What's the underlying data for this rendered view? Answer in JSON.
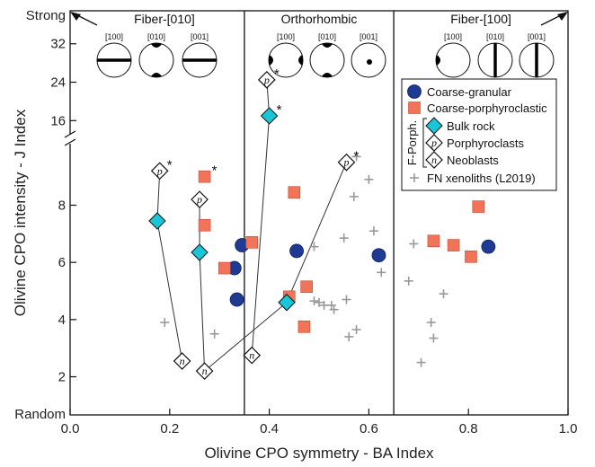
{
  "chart_data": {
    "type": "scatter",
    "xlabel": "Olivine CPO symmetry - BA Index",
    "ylabel": "Olivine CPO intensity - J Index",
    "xlim": [
      0.0,
      1.0
    ],
    "x_ticks": [
      "0.0",
      "0.2",
      "0.4",
      "0.6",
      "0.8",
      "1.0"
    ],
    "y_ticks_lower": [
      "2",
      "4",
      "6",
      "8"
    ],
    "y_ticks_upper": [
      "16",
      "24",
      "32"
    ],
    "y_top_label": "Strong",
    "y_bottom_label": "Random",
    "ylim_lower": [
      1.2,
      9.9
    ],
    "ylim_upper": [
      14,
      37
    ],
    "grid": false,
    "legend_position": "right",
    "regions": [
      {
        "title": "Fiber-[010]",
        "x_range": [
          0.0,
          0.35
        ]
      },
      {
        "title": "Orthorhombic",
        "x_range": [
          0.35,
          0.65
        ]
      },
      {
        "title": "Fiber-[100]",
        "x_range": [
          0.65,
          1.0
        ]
      }
    ],
    "pole_figures": [
      {
        "label": "[100]",
        "pattern": "girdle-h"
      },
      {
        "label": "[010]",
        "pattern": "poles-tb"
      },
      {
        "label": "[001]",
        "pattern": "girdle-h"
      },
      {
        "label": "[100]",
        "pattern": "poles-lr"
      },
      {
        "label": "[010]",
        "pattern": "poles-tb"
      },
      {
        "label": "[001]",
        "pattern": "point"
      },
      {
        "label": "[100]",
        "pattern": "poles-lr"
      },
      {
        "label": "[010]",
        "pattern": "girdle-v"
      },
      {
        "label": "[001]",
        "pattern": "girdle-v"
      }
    ],
    "legend_group_label": "F-Porph.",
    "series": [
      {
        "name": "Coarse-granular",
        "marker": "circle",
        "color": "#1f3a93",
        "points": [
          [
            0.33,
            5.8
          ],
          [
            0.335,
            4.7
          ],
          [
            0.345,
            6.6
          ],
          [
            0.455,
            6.4
          ],
          [
            0.62,
            6.25
          ],
          [
            0.84,
            6.55
          ]
        ]
      },
      {
        "name": "Coarse-porphyroclastic",
        "marker": "square",
        "color": "#f0735a",
        "points": [
          [
            0.27,
            9.0
          ],
          [
            0.27,
            7.3
          ],
          [
            0.31,
            5.8
          ],
          [
            0.365,
            6.7
          ],
          [
            0.45,
            8.45
          ],
          [
            0.44,
            4.8
          ],
          [
            0.475,
            5.15
          ],
          [
            0.47,
            3.75
          ],
          [
            0.73,
            6.75
          ],
          [
            0.77,
            6.6
          ],
          [
            0.805,
            6.2
          ],
          [
            0.82,
            7.95
          ]
        ]
      },
      {
        "name": "Bulk rock",
        "marker": "diamond-filled",
        "color": "#19c6d8",
        "points": [
          [
            0.175,
            7.45
          ],
          [
            0.26,
            6.35
          ],
          [
            0.4,
            17.0
          ],
          [
            0.435,
            4.6
          ]
        ]
      },
      {
        "name": "Porphyroclasts",
        "marker": "diamond-letter",
        "letter": "p",
        "color": "#ffffff",
        "points": [
          [
            0.18,
            9.2
          ],
          [
            0.26,
            8.2
          ],
          [
            0.395,
            24.5
          ],
          [
            0.555,
            9.5
          ]
        ]
      },
      {
        "name": "Neoblasts",
        "marker": "diamond-letter",
        "letter": "n",
        "color": "#ffffff",
        "points": [
          [
            0.225,
            2.55
          ],
          [
            0.27,
            2.2
          ],
          [
            0.365,
            2.75
          ]
        ]
      },
      {
        "name": "FN xenoliths (L2019)",
        "marker": "plus",
        "color": "#999999",
        "points": [
          [
            0.19,
            3.9
          ],
          [
            0.29,
            3.5
          ],
          [
            0.49,
            6.55
          ],
          [
            0.49,
            4.65
          ],
          [
            0.5,
            4.6
          ],
          [
            0.51,
            4.5
          ],
          [
            0.525,
            4.5
          ],
          [
            0.53,
            4.35
          ],
          [
            0.55,
            6.85
          ],
          [
            0.555,
            4.7
          ],
          [
            0.56,
            3.4
          ],
          [
            0.57,
            8.3
          ],
          [
            0.575,
            3.65
          ],
          [
            0.575,
            9.7
          ],
          [
            0.6,
            8.9
          ],
          [
            0.61,
            7.1
          ],
          [
            0.625,
            5.65
          ],
          [
            0.68,
            5.35
          ],
          [
            0.69,
            6.65
          ],
          [
            0.705,
            2.5
          ],
          [
            0.725,
            3.9
          ],
          [
            0.73,
            3.35
          ],
          [
            0.75,
            4.9
          ]
        ]
      }
    ],
    "connectors": [
      [
        [
          0.18,
          9.2
        ],
        [
          0.175,
          7.45
        ],
        [
          0.225,
          2.55
        ]
      ],
      [
        [
          0.26,
          8.2
        ],
        [
          0.26,
          6.35
        ],
        [
          0.27,
          2.2
        ]
      ],
      [
        [
          0.395,
          24.5
        ],
        [
          0.4,
          17.0
        ],
        [
          0.365,
          2.75
        ]
      ],
      [
        [
          0.555,
          9.5
        ],
        [
          0.435,
          4.6
        ],
        [
          0.27,
          2.2
        ]
      ]
    ],
    "starred_points": [
      [
        0.18,
        9.2
      ],
      [
        0.27,
        9.0
      ],
      [
        0.395,
        24.5
      ],
      [
        0.4,
        17.0
      ],
      [
        0.555,
        9.5
      ]
    ]
  }
}
